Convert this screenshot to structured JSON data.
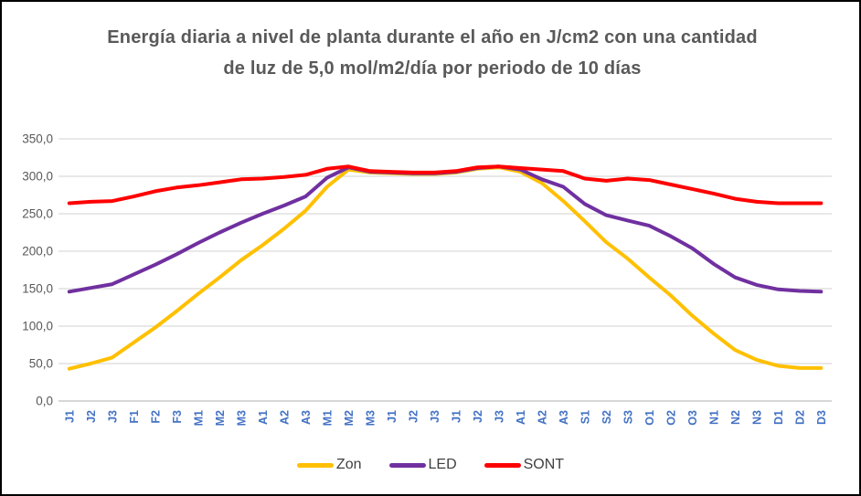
{
  "title": "Energía diaria a nivel de planta durante el año en J/cm2 con una cantidad de luz de 5,0 mol/m2/día por periodo de 10 días",
  "chart_data": {
    "type": "line",
    "title": "Energía diaria a nivel de planta durante el año en J/cm2 con una cantidad de luz de 5,0 mol/m2/día por periodo de 10 días",
    "xlabel": "",
    "ylabel": "",
    "categories": [
      "J1",
      "J2",
      "J3",
      "F1",
      "F2",
      "F3",
      "M1",
      "M2",
      "M3",
      "A1",
      "A2",
      "A3",
      "M1",
      "M2",
      "M3",
      "J1",
      "J2",
      "J3",
      "J1",
      "J2",
      "J3",
      "A1",
      "A2",
      "A3",
      "S1",
      "S2",
      "S3",
      "O1",
      "O2",
      "O3",
      "N1",
      "N2",
      "N3",
      "D1",
      "D2",
      "D3"
    ],
    "series": [
      {
        "name": "Zon",
        "color": "#FFC000",
        "values": [
          43,
          50,
          58,
          78,
          98,
          120,
          143,
          165,
          188,
          208,
          230,
          254,
          286,
          309,
          305,
          304,
          303,
          303,
          305,
          310,
          312,
          306,
          291,
          267,
          240,
          212,
          190,
          165,
          141,
          114,
          90,
          68,
          55,
          47,
          44,
          44
        ]
      },
      {
        "name": "LED",
        "color": "#7030A0",
        "values": [
          146,
          151,
          156,
          169,
          182,
          196,
          211,
          225,
          238,
          250,
          261,
          273,
          298,
          312,
          306,
          305,
          304,
          304,
          306,
          311,
          313,
          309,
          296,
          286,
          263,
          248,
          241,
          234,
          220,
          204,
          183,
          165,
          155,
          149,
          147,
          146
        ]
      },
      {
        "name": "SONT",
        "color": "#FF0000",
        "values": [
          264,
          266,
          267,
          273,
          280,
          285,
          288,
          292,
          296,
          297,
          299,
          302,
          310,
          313,
          307,
          306,
          305,
          305,
          307,
          312,
          313,
          311,
          309,
          307,
          297,
          294,
          297,
          295,
          289,
          283,
          277,
          270,
          266,
          264,
          264,
          264
        ]
      }
    ],
    "ylim": [
      0,
      350
    ],
    "y_ticks": [
      0,
      50,
      100,
      150,
      200,
      250,
      300,
      350
    ],
    "y_tick_labels": [
      "0,0",
      "50,0",
      "100,0",
      "150,0",
      "200,0",
      "250,0",
      "300,0",
      "350,0"
    ],
    "grid": true,
    "legend_position": "bottom",
    "colors": {
      "gridline": "#D9D9D9",
      "axis_line": "#BFBFBF",
      "x_tick_label": "#4472C4",
      "y_tick_label": "#595959",
      "title": "#595959",
      "legend_text": "#404040",
      "figure_border": "#000000",
      "background": "#FFFFFF"
    }
  }
}
